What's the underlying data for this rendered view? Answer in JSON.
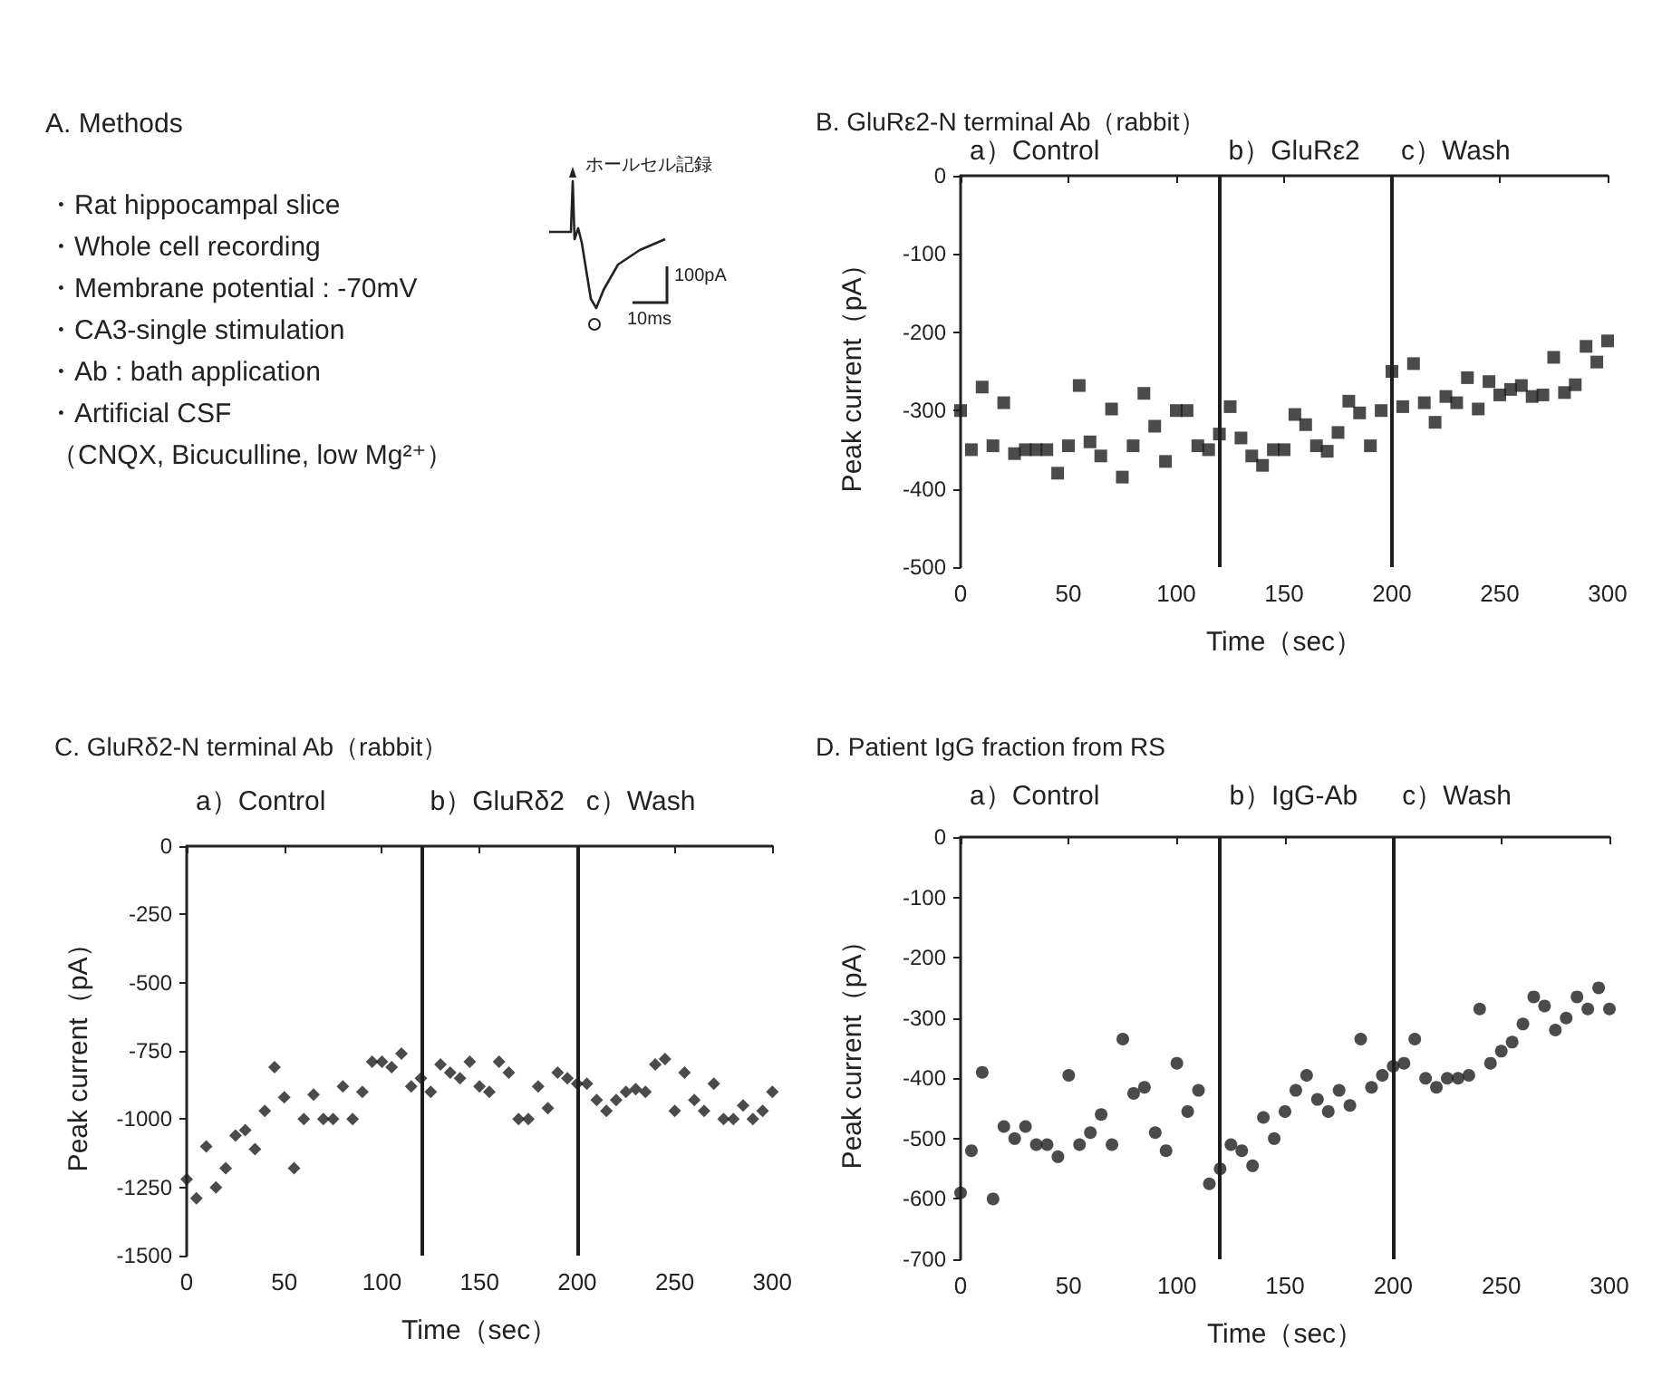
{
  "chart_data": [
    {
      "type": "other",
      "title": "A. Methods",
      "annotations": [
        "・Rat hippocampal slice",
        "・Whole cell recording",
        "・Membrane potential : -70mV",
        "・CA3-single stimulation",
        "・Ab : bath application",
        "・Artificial CSF",
        "（CNQX, Bicuculline, low Mg²⁺）",
        "ホールセル記録",
        "100pA",
        "10ms"
      ]
    },
    {
      "type": "scatter",
      "title": "B. GluRε2-N terminal Ab（rabbit）",
      "xlabel": "Time（sec）",
      "ylabel": "Peak current（pA）",
      "marker": "square",
      "color": "#1e1e1e",
      "x": [
        0,
        5,
        10,
        15,
        20,
        25,
        30,
        35,
        40,
        45,
        50,
        55,
        60,
        65,
        70,
        75,
        80,
        85,
        90,
        95,
        100,
        105,
        110,
        115,
        120,
        125,
        130,
        135,
        140,
        145,
        150,
        155,
        160,
        165,
        170,
        175,
        180,
        185,
        190,
        195,
        200,
        205,
        210,
        215,
        220,
        225,
        230,
        235,
        240,
        245,
        250,
        255,
        260,
        265,
        270,
        275,
        280,
        285,
        290,
        295,
        300
      ],
      "values": [
        -300,
        -350,
        -270,
        -345,
        -290,
        -355,
        -350,
        -350,
        -350,
        -380,
        -345,
        -268,
        -340,
        -358,
        -298,
        -385,
        -345,
        -278,
        -320,
        -365,
        -300,
        -300,
        -345,
        -350,
        -330,
        -295,
        -335,
        -358,
        -370,
        -350,
        -350,
        -305,
        -318,
        -345,
        -352,
        -328,
        -288,
        -303,
        -345,
        -300,
        -250,
        -295,
        -240,
        -290,
        -315,
        -282,
        -290,
        -258,
        -298,
        -263,
        -280,
        -273,
        -268,
        -282,
        -280,
        -232,
        -277,
        -267,
        -218,
        -238,
        -211
      ],
      "xlim": [
        0,
        300
      ],
      "xticks": [
        0,
        50,
        100,
        150,
        200,
        250,
        300
      ],
      "ylim": [
        -500,
        0
      ],
      "yticks": [
        -500,
        -400,
        -300,
        -200,
        -100,
        0
      ],
      "ref_lines": [
        {
          "axis": "x",
          "value": 120
        },
        {
          "axis": "x",
          "value": 200
        }
      ],
      "annotations": [
        "a）Control",
        "b）GluRε2",
        "c）Wash"
      ]
    },
    {
      "type": "scatter",
      "title": "C. GluRδ2-N terminal Ab（rabbit）",
      "xlabel": "Time（sec）",
      "ylabel": "Peak current（pA）",
      "marker": "diamond",
      "color": "#1e1e1e",
      "x": [
        0,
        5,
        10,
        15,
        20,
        25,
        30,
        35,
        40,
        45,
        50,
        55,
        60,
        65,
        70,
        75,
        80,
        85,
        90,
        95,
        100,
        105,
        110,
        115,
        120,
        125,
        130,
        135,
        140,
        145,
        150,
        155,
        160,
        165,
        170,
        175,
        180,
        185,
        190,
        195,
        200,
        205,
        210,
        215,
        220,
        225,
        230,
        235,
        240,
        245,
        250,
        255,
        260,
        265,
        270,
        275,
        280,
        285,
        290,
        295,
        300
      ],
      "values": [
        -1220,
        -1290,
        -1100,
        -1250,
        -1180,
        -1060,
        -1040,
        -1110,
        -970,
        -810,
        -920,
        -1180,
        -1000,
        -910,
        -1000,
        -1000,
        -880,
        -1000,
        -900,
        -790,
        -790,
        -810,
        -760,
        -880,
        -850,
        -900,
        -800,
        -830,
        -850,
        -790,
        -880,
        -900,
        -790,
        -830,
        -1000,
        -1000,
        -880,
        -960,
        -830,
        -850,
        -870,
        -870,
        -930,
        -970,
        -930,
        -900,
        -890,
        -900,
        -800,
        -780,
        -970,
        -830,
        -930,
        -970,
        -870,
        -1000,
        -1000,
        -950,
        -1000,
        -970,
        -900
      ],
      "xlim": [
        0,
        300
      ],
      "xticks": [
        0,
        50,
        100,
        150,
        200,
        250,
        300
      ],
      "ylim": [
        -1500,
        0
      ],
      "yticks": [
        -1500,
        -1250,
        -1000,
        -750,
        -500,
        -250,
        0
      ],
      "ref_lines": [
        {
          "axis": "x",
          "value": 120
        },
        {
          "axis": "x",
          "value": 200
        }
      ],
      "annotations": [
        "a）Control",
        "b）GluRδ2",
        "c）Wash"
      ]
    },
    {
      "type": "scatter",
      "title": "D. Patient IgG fraction from RS",
      "xlabel": "Time（sec）",
      "ylabel": "Peak current（pA）",
      "marker": "circle",
      "color": "#1e1e1e",
      "x": [
        0,
        5,
        10,
        15,
        20,
        25,
        30,
        35,
        40,
        45,
        50,
        55,
        60,
        65,
        70,
        75,
        80,
        85,
        90,
        95,
        100,
        105,
        110,
        115,
        120,
        125,
        130,
        135,
        140,
        145,
        150,
        155,
        160,
        165,
        170,
        175,
        180,
        185,
        190,
        195,
        200,
        205,
        210,
        215,
        220,
        225,
        230,
        235,
        240,
        245,
        250,
        255,
        260,
        265,
        270,
        275,
        280,
        285,
        290,
        295,
        300
      ],
      "values": [
        -590,
        -520,
        -390,
        -600,
        -480,
        -500,
        -480,
        -510,
        -510,
        -530,
        -395,
        -510,
        -490,
        -460,
        -510,
        -335,
        -425,
        -415,
        -490,
        -520,
        -375,
        -455,
        -420,
        -575,
        -550,
        -510,
        -520,
        -545,
        -465,
        -500,
        -455,
        -420,
        -395,
        -435,
        -455,
        -420,
        -445,
        -335,
        -415,
        -395,
        -380,
        -375,
        -335,
        -400,
        -415,
        -400,
        -400,
        -395,
        -285,
        -375,
        -355,
        -340,
        -310,
        -265,
        -280,
        -320,
        -300,
        -265,
        -285,
        -250,
        -285
      ],
      "xlim": [
        0,
        300
      ],
      "xticks": [
        0,
        50,
        100,
        150,
        200,
        250,
        300
      ],
      "ylim": [
        -700,
        0
      ],
      "yticks": [
        -700,
        -600,
        -500,
        -400,
        -300,
        -200,
        -100,
        0
      ],
      "ref_lines": [
        {
          "axis": "x",
          "value": 120
        },
        {
          "axis": "x",
          "value": 200
        }
      ],
      "annotations": [
        "a）Control",
        "b）IgG-Ab",
        "c）Wash"
      ]
    }
  ]
}
